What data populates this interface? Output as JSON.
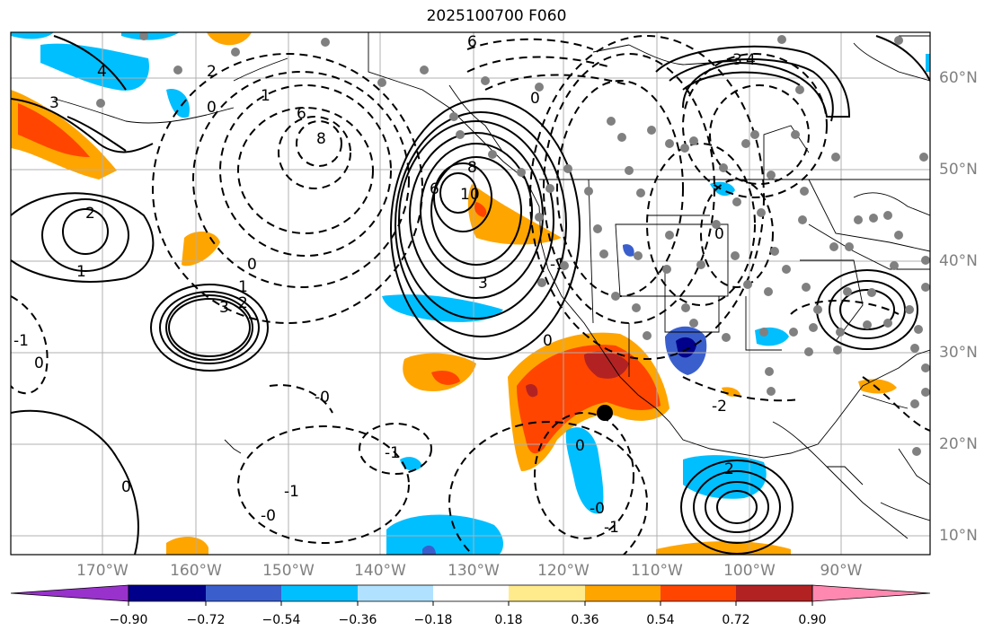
{
  "title": "2025100700 F060",
  "lat_labels": [
    "60°N",
    "50°N",
    "40°N",
    "30°N",
    "20°N",
    "10°N"
  ],
  "lon_labels": [
    "170°W",
    "160°W",
    "150°W",
    "140°W",
    "130°W",
    "120°W",
    "110°W",
    "100°W",
    "90°W"
  ],
  "contour_labels": [
    "6",
    "4",
    "3",
    "2",
    "1",
    "0",
    "0",
    "8",
    "6",
    "10",
    "8",
    "6",
    "3",
    "2",
    "1",
    "0",
    "3",
    "2",
    "1",
    "-1",
    "-1",
    "-1",
    "0",
    "-0",
    "-0",
    "0",
    "-1",
    "0",
    "-0",
    "0",
    "-2",
    "0",
    "-1",
    "2",
    "3",
    "4"
  ],
  "colorbar": {
    "ticks": [
      "−0.90",
      "−0.72",
      "−0.54",
      "−0.36",
      "−0.18",
      "0.18",
      "0.36",
      "0.54",
      "0.72",
      "0.90"
    ],
    "colors": [
      "#9932cc",
      "#00008b",
      "#3a5fcd",
      "#00bfff",
      "#b0e2ff",
      "#ffffff",
      "#ffeb8c",
      "#ffa500",
      "#ff4500",
      "#b22222",
      "#ff88b0"
    ]
  },
  "marker": "storm-center"
}
